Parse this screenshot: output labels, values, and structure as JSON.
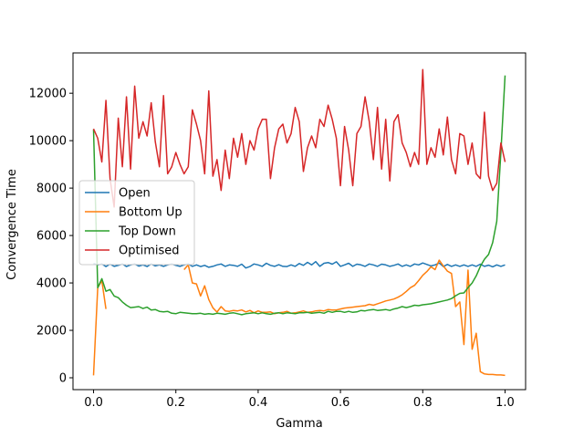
{
  "chart_data": {
    "type": "line",
    "title": "",
    "xlabel": "Gamma",
    "ylabel": "Convergence Time",
    "xlim": [
      -0.05,
      1.05
    ],
    "ylim": [
      -500,
      13700
    ],
    "xticks": [
      0.0,
      0.2,
      0.4,
      0.6,
      0.8,
      1.0
    ],
    "xtick_labels": [
      "0.0",
      "0.2",
      "0.4",
      "0.6",
      "0.8",
      "1.0"
    ],
    "yticks": [
      0,
      2000,
      4000,
      6000,
      8000,
      10000,
      12000
    ],
    "ytick_labels": [
      "0",
      "2000",
      "4000",
      "6000",
      "8000",
      "10000",
      "12000"
    ],
    "grid": false,
    "legend_position": "center-left",
    "x": [
      0.0,
      0.01,
      0.02,
      0.03,
      0.04,
      0.05,
      0.06,
      0.07,
      0.08,
      0.09,
      0.1,
      0.11,
      0.12,
      0.13,
      0.14,
      0.15,
      0.16,
      0.17,
      0.18,
      0.19,
      0.2,
      0.21,
      0.22,
      0.23,
      0.24,
      0.25,
      0.26,
      0.27,
      0.28,
      0.29,
      0.3,
      0.31,
      0.32,
      0.33,
      0.34,
      0.35,
      0.36,
      0.37,
      0.38,
      0.39,
      0.4,
      0.41,
      0.42,
      0.43,
      0.44,
      0.45,
      0.46,
      0.47,
      0.48,
      0.49,
      0.5,
      0.51,
      0.52,
      0.53,
      0.54,
      0.55,
      0.56,
      0.57,
      0.58,
      0.59,
      0.6,
      0.61,
      0.62,
      0.63,
      0.64,
      0.65,
      0.66,
      0.67,
      0.68,
      0.69,
      0.7,
      0.71,
      0.72,
      0.73,
      0.74,
      0.75,
      0.76,
      0.77,
      0.78,
      0.79,
      0.8,
      0.81,
      0.82,
      0.83,
      0.84,
      0.85,
      0.86,
      0.87,
      0.88,
      0.89,
      0.9,
      0.91,
      0.92,
      0.93,
      0.94,
      0.95,
      0.96,
      0.97,
      0.98,
      0.99,
      1.0
    ],
    "series": [
      {
        "name": "Open",
        "color": "#1f77b4",
        "values": [
          4820,
          4760,
          4800,
          4690,
          4790,
          4700,
          4740,
          4800,
          4690,
          4760,
          4800,
          4710,
          4760,
          4690,
          4800,
          4720,
          4760,
          4700,
          4760,
          4800,
          4740,
          4700,
          4760,
          4800,
          4700,
          4760,
          4690,
          4740,
          4660,
          4700,
          4760,
          4800,
          4700,
          4760,
          4740,
          4700,
          4790,
          4630,
          4690,
          4800,
          4760,
          4700,
          4830,
          4740,
          4700,
          4770,
          4700,
          4690,
          4760,
          4700,
          4820,
          4740,
          4870,
          4760,
          4900,
          4700,
          4830,
          4860,
          4790,
          4890,
          4700,
          4760,
          4830,
          4700,
          4790,
          4760,
          4700,
          4800,
          4760,
          4700,
          4790,
          4760,
          4700,
          4740,
          4800,
          4700,
          4760,
          4700,
          4800,
          4760,
          4840,
          4780,
          4720,
          4760,
          4840,
          4690,
          4780,
          4700,
          4760,
          4700,
          4760,
          4700,
          4760,
          4700,
          4790,
          4700,
          4750,
          4680,
          4760,
          4700,
          4760
        ]
      },
      {
        "name": "Bottom Up",
        "color": "#ff7f0e",
        "values": [
          100,
          3800,
          4100,
          2900,
          null,
          null,
          null,
          null,
          null,
          null,
          null,
          null,
          null,
          null,
          null,
          null,
          null,
          null,
          null,
          null,
          null,
          null,
          4560,
          4760,
          4000,
          3960,
          3450,
          3880,
          3300,
          2950,
          2770,
          3000,
          2820,
          2800,
          2840,
          2820,
          2860,
          2780,
          2840,
          2740,
          2820,
          2760,
          2760,
          2780,
          2700,
          2740,
          2760,
          2800,
          2720,
          2740,
          2780,
          2820,
          2760,
          2780,
          2820,
          2840,
          2820,
          2880,
          2860,
          2860,
          2900,
          2940,
          2960,
          2980,
          3000,
          3020,
          3040,
          3100,
          3060,
          3120,
          3180,
          3240,
          3280,
          3320,
          3400,
          3500,
          3640,
          3800,
          3900,
          4100,
          4320,
          4480,
          4680,
          4560,
          4960,
          4720,
          4500,
          4400,
          3000,
          3200,
          1400,
          4540,
          1200,
          1880,
          260,
          160,
          140,
          140,
          120,
          120,
          100
        ]
      },
      {
        "name": "Top Down",
        "color": "#2ca02c",
        "values": [
          10480,
          3800,
          4180,
          3650,
          3720,
          3450,
          3380,
          3200,
          3060,
          2960,
          2980,
          3000,
          2920,
          2980,
          2860,
          2880,
          2800,
          2780,
          2800,
          2720,
          2700,
          2760,
          2740,
          2720,
          2700,
          2700,
          2720,
          2680,
          2700,
          2680,
          2720,
          2700,
          2680,
          2720,
          2740,
          2700,
          2660,
          2700,
          2720,
          2740,
          2700,
          2740,
          2700,
          2680,
          2720,
          2740,
          2700,
          2740,
          2720,
          2700,
          2740,
          2740,
          2760,
          2720,
          2740,
          2760,
          2720,
          2800,
          2760,
          2800,
          2800,
          2760,
          2800,
          2760,
          2780,
          2840,
          2820,
          2860,
          2880,
          2840,
          2860,
          2880,
          2840,
          2900,
          2940,
          3000,
          2960,
          3000,
          3060,
          3040,
          3080,
          3100,
          3120,
          3160,
          3200,
          3240,
          3280,
          3340,
          3460,
          3560,
          3580,
          3800,
          4000,
          4300,
          4700,
          5000,
          5200,
          5700,
          6600,
          9500,
          12750
        ]
      },
      {
        "name": "Optimised",
        "color": "#d62728",
        "values": [
          10500,
          10100,
          9100,
          11700,
          8400,
          7200,
          10950,
          8900,
          11850,
          8800,
          12300,
          10100,
          10800,
          10200,
          11600,
          9950,
          8900,
          11900,
          8600,
          8900,
          9500,
          9000,
          8600,
          8900,
          11300,
          10700,
          10000,
          8600,
          12100,
          8500,
          9200,
          7900,
          9600,
          8400,
          10100,
          9300,
          10300,
          9000,
          10000,
          9600,
          10500,
          10900,
          10900,
          8400,
          9700,
          10500,
          10700,
          9900,
          10300,
          11400,
          10800,
          8700,
          9700,
          10200,
          9700,
          10900,
          10600,
          11500,
          10900,
          10100,
          8100,
          10600,
          9600,
          8100,
          10300,
          10600,
          11850,
          10800,
          9200,
          11400,
          8800,
          10900,
          8300,
          10800,
          11100,
          9900,
          9500,
          8900,
          9500,
          9000,
          13000,
          9000,
          9700,
          9300,
          10500,
          9400,
          11000,
          9200,
          8600,
          10300,
          10200,
          9000,
          9900,
          8600,
          8400,
          11200,
          8500,
          7900,
          8200,
          9900,
          9100
        ]
      }
    ]
  }
}
